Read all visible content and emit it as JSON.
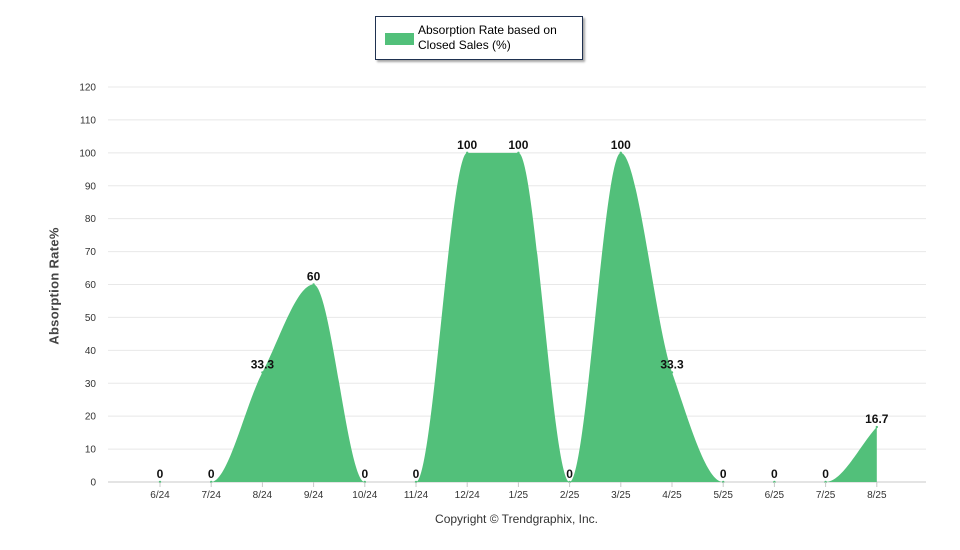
{
  "chart_data": {
    "type": "area",
    "legend_placement": "top-center",
    "ylabel": "Absorption Rate%",
    "ylim": [
      0,
      120
    ],
    "yticks": [
      0,
      10,
      20,
      30,
      40,
      50,
      60,
      70,
      80,
      90,
      100,
      110,
      120
    ],
    "grid": true,
    "categories": [
      "6/24",
      "7/24",
      "8/24",
      "9/24",
      "10/24",
      "11/24",
      "12/24",
      "1/25",
      "2/25",
      "3/25",
      "4/25",
      "5/25",
      "6/25",
      "7/25",
      "8/25"
    ],
    "series": [
      {
        "name": "Absorption Rate based on Closed Sales (%)",
        "color": "#52c07a",
        "values": [
          0,
          0,
          33.3,
          60,
          0,
          0,
          100,
          100,
          0,
          100,
          33.3,
          0,
          0,
          0,
          16.7
        ],
        "labels": [
          "0",
          "0",
          "33.3",
          "60",
          "0",
          "0",
          "100",
          "100",
          "0",
          "100",
          "33.3",
          "0",
          "0",
          "0",
          "16.7"
        ]
      }
    ]
  },
  "legend": {
    "label": "Absorption Rate based on Closed Sales (%)"
  },
  "footer": {
    "copyright": "Copyright © Trendgraphix, Inc."
  }
}
